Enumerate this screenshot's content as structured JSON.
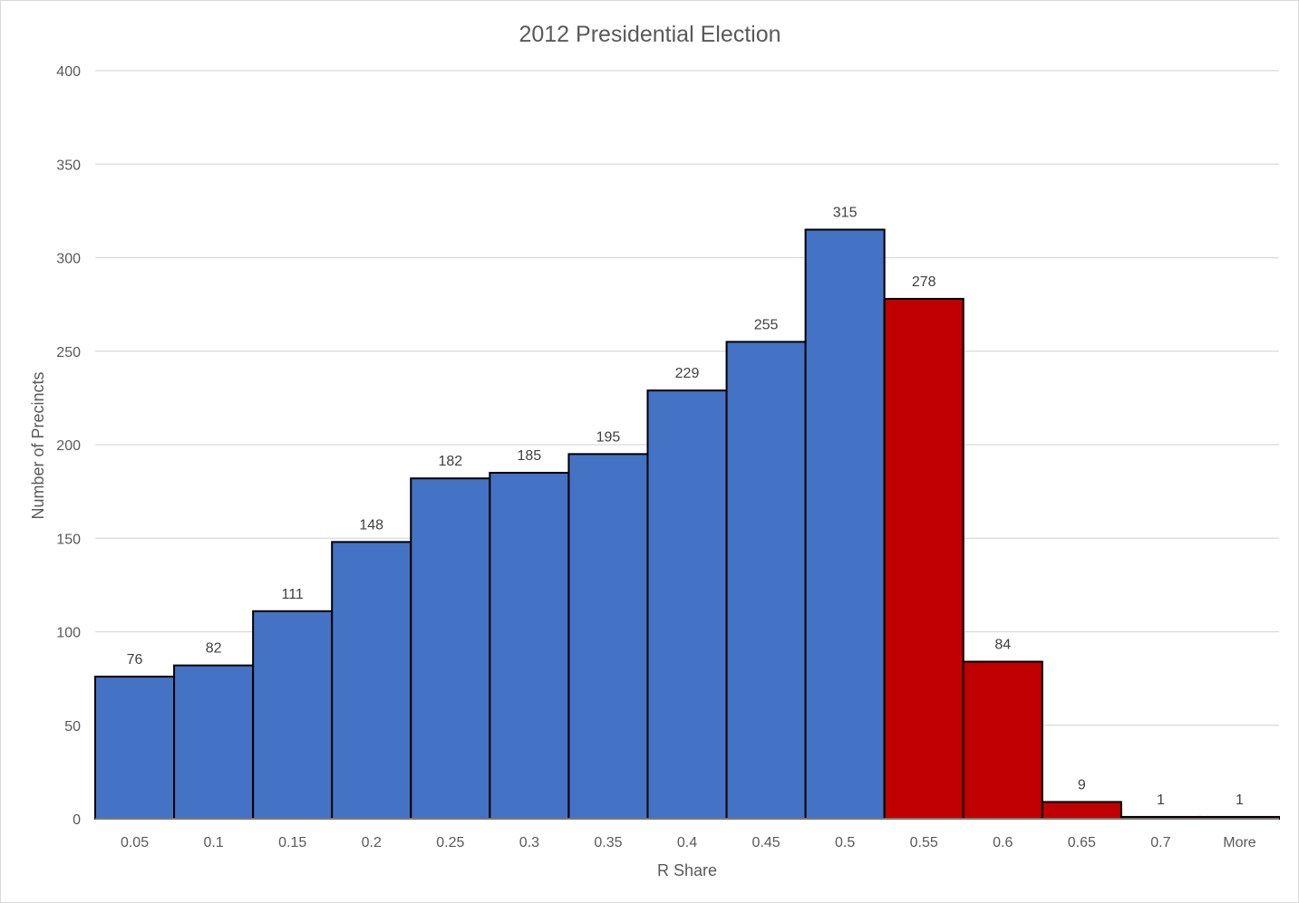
{
  "chart_data": {
    "type": "bar",
    "title": "2012 Presidential Election",
    "xlabel": "R Share",
    "ylabel": "Number of Precincts",
    "categories": [
      "0.05",
      "0.1",
      "0.15",
      "0.2",
      "0.25",
      "0.3",
      "0.35",
      "0.4",
      "0.45",
      "0.5",
      "0.55",
      "0.6",
      "0.65",
      "0.7",
      "More"
    ],
    "values": [
      76,
      82,
      111,
      148,
      182,
      185,
      195,
      229,
      255,
      315,
      278,
      84,
      9,
      1,
      1
    ],
    "bar_colors": [
      "#4472c4",
      "#4472c4",
      "#4472c4",
      "#4472c4",
      "#4472c4",
      "#4472c4",
      "#4472c4",
      "#4472c4",
      "#4472c4",
      "#4472c4",
      "#c00000",
      "#c00000",
      "#c00000",
      "#c00000",
      "#c00000"
    ],
    "ylim": [
      0,
      400
    ],
    "yticks": [
      0,
      50,
      100,
      150,
      200,
      250,
      300,
      350,
      400
    ],
    "grid": true,
    "legend": "none",
    "data_labels": true
  }
}
